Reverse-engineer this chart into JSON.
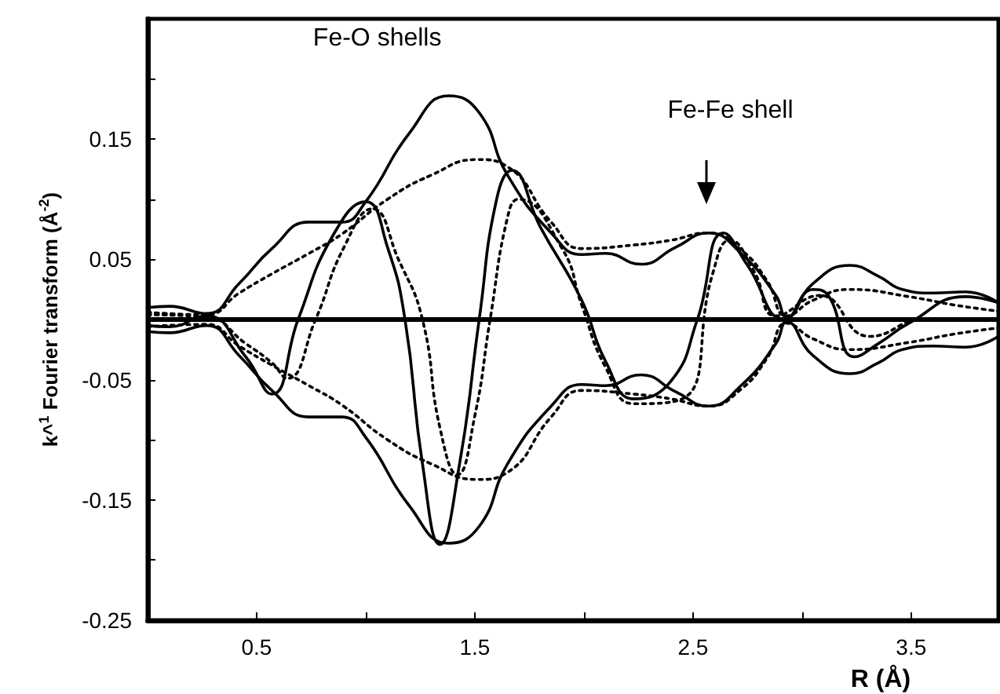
{
  "chart_data": {
    "type": "line",
    "xlabel": "R (Å)",
    "ylabel": "k^$^{1}$ Fourier transform (Å$^{-2}$)",
    "annotations": [
      "Fe-O shells",
      "Fe-Fe shell"
    ],
    "xlim": [
      0,
      3.9
    ],
    "ylim": [
      -0.25,
      0.25
    ],
    "xticks": [
      0.5,
      {
        "value": 1.0,
        "label": null
      },
      1.5,
      {
        "value": 2.0,
        "label": null
      },
      2.5,
      {
        "value": 3.0,
        "label": null
      },
      3.5
    ],
    "yticks": [
      -0.25,
      {
        "value": -0.2,
        "label": null
      },
      -0.15,
      {
        "value": -0.1,
        "label": null
      },
      -0.05,
      {
        "value": 0,
        "label": null
      },
      0.05,
      {
        "value": 0.1,
        "label": null
      },
      0.15,
      {
        "value": 0.2,
        "label": null
      }
    ],
    "grid": false,
    "marker": "none",
    "line_style": "solid",
    "ref_lines": [
      {
        "axis": "y",
        "value": 0,
        "color": "#000000"
      }
    ],
    "series": [
      {
        "color": "#000000",
        "x": [
          0.0,
          0.1,
          0.27,
          0.42,
          0.57,
          0.74,
          0.89,
          1.0,
          1.2,
          1.38,
          1.52,
          1.65,
          1.85,
          1.99,
          2.1,
          2.26,
          2.42,
          2.57,
          2.72,
          2.88,
          2.93,
          3.05,
          3.22,
          3.35,
          3.46,
          3.6,
          3.75,
          3.9
        ],
        "values": [
          0.01,
          0.011,
          0.005,
          0.03,
          0.059,
          0.081,
          0.081,
          0.098,
          0.155,
          0.186,
          0.172,
          0.12,
          0.072,
          0.054,
          0.055,
          0.046,
          0.06,
          0.072,
          0.055,
          0.02,
          0.002,
          0.03,
          0.045,
          0.036,
          0.025,
          0.022,
          0.023,
          0.014
        ]
      },
      {
        "color": "#000000",
        "x": [
          0.0,
          0.1,
          0.27,
          0.42,
          0.57,
          0.74,
          0.89,
          1.0,
          1.2,
          1.38,
          1.52,
          1.65,
          1.85,
          1.99,
          2.1,
          2.26,
          2.42,
          2.57,
          2.72,
          2.88,
          2.93,
          3.05,
          3.22,
          3.35,
          3.46,
          3.6,
          3.75,
          3.9
        ],
        "values": [
          -0.01,
          -0.011,
          -0.005,
          -0.03,
          -0.059,
          -0.081,
          -0.081,
          -0.098,
          -0.155,
          -0.186,
          -0.172,
          -0.12,
          -0.072,
          -0.054,
          -0.055,
          -0.046,
          -0.06,
          -0.072,
          -0.055,
          -0.02,
          -0.002,
          -0.03,
          -0.045,
          -0.036,
          -0.025,
          -0.022,
          -0.023,
          -0.014
        ]
      },
      {
        "color": "#000000",
        "x": [
          0.0,
          0.1,
          0.27,
          0.45,
          0.57,
          0.69,
          0.85,
          1.0,
          1.1,
          1.18,
          1.26,
          1.34,
          1.43,
          1.52,
          1.6,
          1.67,
          1.8,
          1.99,
          2.1,
          2.23,
          2.4,
          2.52,
          2.64,
          2.75,
          2.92,
          3.05,
          3.12,
          3.24,
          3.35,
          3.49,
          3.75,
          3.9
        ],
        "values": [
          -0.005,
          -0.006,
          0.003,
          -0.031,
          -0.062,
          0.0,
          0.07,
          0.098,
          0.06,
          0.0,
          -0.12,
          -0.187,
          -0.12,
          0.0,
          0.1,
          0.124,
          0.077,
          0.016,
          -0.035,
          -0.066,
          -0.051,
          0.0,
          0.072,
          0.045,
          0.0,
          0.025,
          0.02,
          -0.031,
          -0.02,
          -0.003,
          0.019,
          0.014
        ]
      },
      {
        "color": "#000000",
        "line_style": "dotted",
        "x": [
          0.0,
          0.27,
          0.42,
          0.57,
          0.74,
          0.89,
          1.1,
          1.3,
          1.51,
          1.65,
          1.85,
          1.99,
          2.23,
          2.4,
          2.57,
          2.72,
          2.84,
          2.93,
          3.05,
          3.22,
          3.49,
          3.7,
          3.9
        ],
        "values": [
          0.006,
          0.004,
          0.022,
          0.038,
          0.055,
          0.071,
          0.1,
          0.12,
          0.133,
          0.127,
          0.081,
          0.059,
          0.062,
          0.066,
          0.072,
          0.058,
          0.032,
          0.003,
          0.016,
          0.025,
          0.019,
          0.012,
          0.007
        ]
      },
      {
        "color": "#000000",
        "line_style": "dotted",
        "x": [
          0.0,
          0.27,
          0.42,
          0.57,
          0.74,
          0.89,
          1.1,
          1.3,
          1.51,
          1.65,
          1.85,
          1.99,
          2.23,
          2.4,
          2.57,
          2.72,
          2.84,
          2.93,
          3.05,
          3.22,
          3.49,
          3.7,
          3.9
        ],
        "values": [
          -0.006,
          -0.004,
          -0.022,
          -0.038,
          -0.055,
          -0.071,
          -0.1,
          -0.12,
          -0.133,
          -0.127,
          -0.081,
          -0.059,
          -0.062,
          -0.066,
          -0.072,
          -0.058,
          -0.032,
          -0.003,
          -0.016,
          -0.025,
          -0.019,
          -0.012,
          -0.007
        ]
      },
      {
        "color": "#000000",
        "line_style": "dotted",
        "x": [
          0.0,
          0.27,
          0.45,
          0.57,
          0.64,
          0.77,
          0.9,
          1.03,
          1.15,
          1.26,
          1.34,
          1.42,
          1.5,
          1.57,
          1.65,
          1.7,
          1.9,
          1.99,
          2.1,
          2.23,
          2.45,
          2.59,
          2.67,
          2.78,
          2.88,
          3.08,
          3.31,
          3.56,
          3.9
        ],
        "values": [
          0.004,
          0.002,
          -0.02,
          -0.036,
          -0.049,
          0.0,
          0.06,
          0.092,
          0.05,
          0.0,
          -0.09,
          -0.129,
          -0.08,
          0.0,
          0.085,
          0.1,
          0.059,
          0.012,
          -0.04,
          -0.07,
          -0.066,
          0.038,
          0.066,
          0.04,
          0.003,
          0.02,
          -0.014,
          0.0,
          0.0
        ]
      }
    ]
  }
}
